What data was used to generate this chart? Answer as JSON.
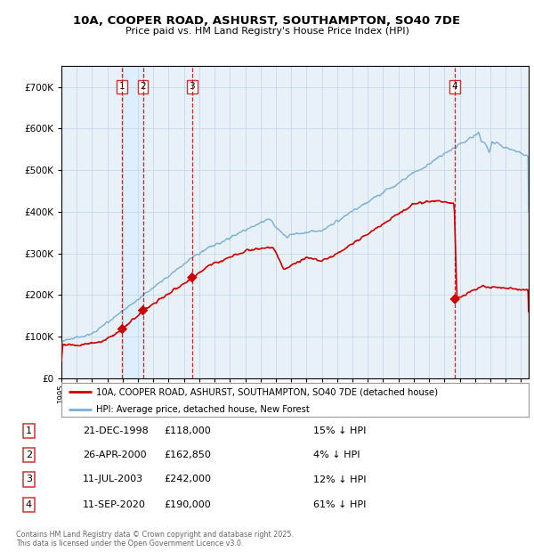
{
  "title": "10A, COOPER ROAD, ASHURST, SOUTHAMPTON, SO40 7DE",
  "subtitle": "Price paid vs. HM Land Registry's House Price Index (HPI)",
  "legend_label_red": "10A, COOPER ROAD, ASHURST, SOUTHAMPTON, SO40 7DE (detached house)",
  "legend_label_blue": "HPI: Average price, detached house, New Forest",
  "footer": "Contains HM Land Registry data © Crown copyright and database right 2025.\nThis data is licensed under the Open Government Licence v3.0.",
  "transactions": [
    {
      "num": 1,
      "date": "21-DEC-1998",
      "price": 118000,
      "pct": "15%",
      "dir": "↓",
      "year": 1998.97
    },
    {
      "num": 2,
      "date": "26-APR-2000",
      "price": 162850,
      "pct": "4%",
      "dir": "↓",
      "year": 2000.32
    },
    {
      "num": 3,
      "date": "11-JUL-2003",
      "price": 242000,
      "pct": "12%",
      "dir": "↓",
      "year": 2003.53
    },
    {
      "num": 4,
      "date": "11-SEP-2020",
      "price": 190000,
      "pct": "61%",
      "dir": "↓",
      "year": 2020.69
    }
  ],
  "red_color": "#cc0000",
  "blue_color": "#7aafd4",
  "shade_color": "#ddeeff",
  "grid_color": "#c8d8e8",
  "box_color": "#cc3333",
  "bg_color": "#ffffff",
  "plot_bg": "#e8f0f8",
  "ylim": [
    0,
    750000
  ],
  "yticks": [
    0,
    100000,
    200000,
    300000,
    400000,
    500000,
    600000,
    700000
  ]
}
